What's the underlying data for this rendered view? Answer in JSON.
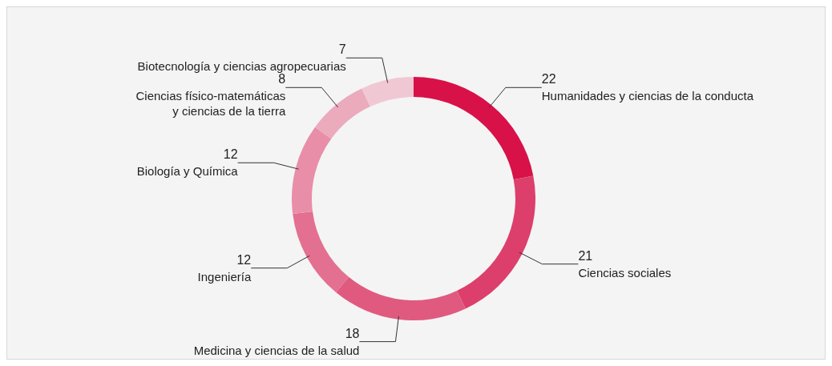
{
  "chart_data": {
    "type": "donut",
    "categories": [
      "Humanidades y ciencias de la conducta",
      "Ciencias sociales",
      "Medicina y ciencias de la salud",
      "Ingeniería",
      "Biología y Química",
      "Ciencias físico-matemáticas\ny ciencias de la tierra",
      "Biotecnología y ciencias agropecuarias"
    ],
    "values": [
      22,
      21,
      18,
      12,
      12,
      8,
      7
    ],
    "colors": [
      "#d81149",
      "#dc3f6c",
      "#e05a80",
      "#e37090",
      "#e88ea8",
      "#ecaabd",
      "#f0c8d3"
    ],
    "data_labels": true
  }
}
